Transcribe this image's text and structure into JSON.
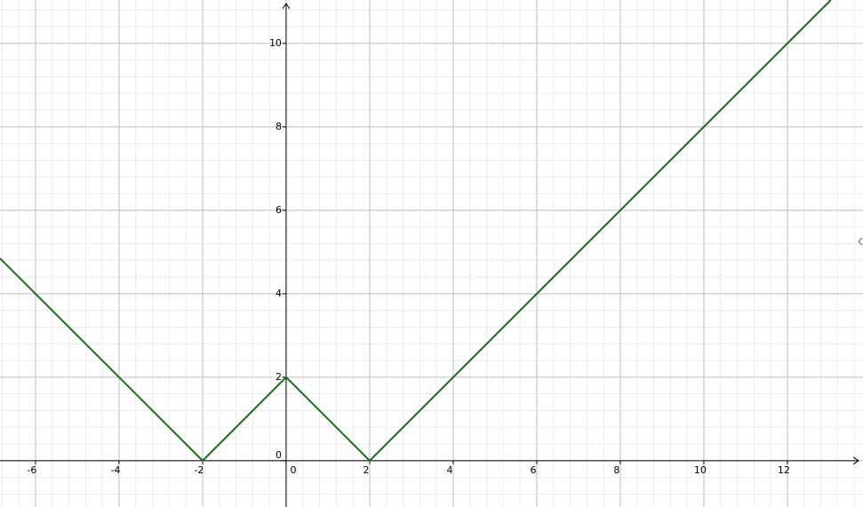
{
  "chart_data": {
    "type": "line",
    "x": [
      -6.85,
      -2,
      0,
      2,
      13.04
    ],
    "series": [
      {
        "color": "#1e6b1e",
        "values": [
          4.85,
          0,
          2,
          0,
          11.04
        ]
      }
    ],
    "xlim": [
      -6.85,
      13.81
    ],
    "ylim": [
      -1.11,
      11.04
    ],
    "xticks": [
      -6,
      -4,
      -2,
      0,
      2,
      4,
      6,
      8,
      10,
      12
    ],
    "yticks": [
      0,
      2,
      4,
      6,
      8,
      10
    ],
    "grid": true,
    "minor_grid": true
  }
}
